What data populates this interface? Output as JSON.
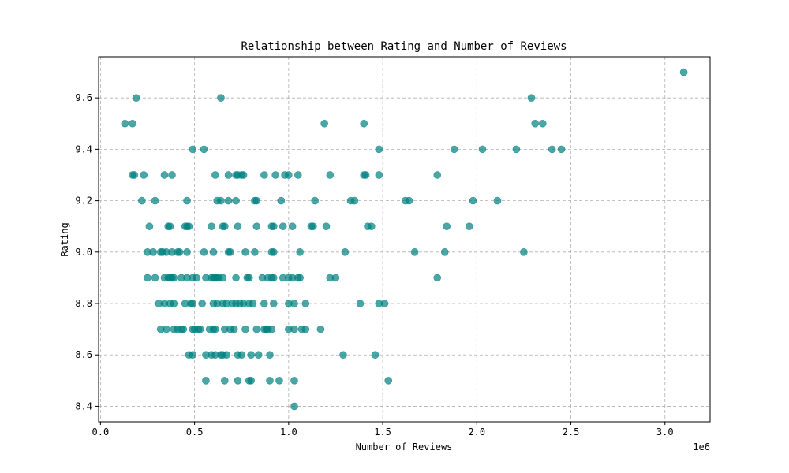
{
  "chart_data": {
    "type": "scatter",
    "title": "Relationship between Rating and Number of Reviews",
    "xlabel": "Number of Reviews",
    "ylabel": "Rating",
    "x_offset_label": "1e6",
    "x_unit_multiplier": 1000000,
    "xlim": [
      -0.01,
      3.24
    ],
    "ylim": [
      8.34,
      9.76
    ],
    "x_ticks": [
      0.0,
      0.5,
      1.0,
      1.5,
      2.0,
      2.5,
      3.0
    ],
    "x_tick_labels": [
      "0.0",
      "0.5",
      "1.0",
      "1.5",
      "2.0",
      "2.5",
      "3.0"
    ],
    "y_ticks": [
      8.4,
      8.6,
      8.8,
      9.0,
      9.2,
      9.4,
      9.6
    ],
    "y_tick_labels": [
      "8.4",
      "8.6",
      "8.8",
      "9.0",
      "9.2",
      "9.4",
      "9.6"
    ],
    "grid": true,
    "marker_color": "#008080",
    "marker_alpha": 0.7,
    "points": [
      [
        0.13,
        9.5
      ],
      [
        0.17,
        9.5
      ],
      [
        0.19,
        9.6
      ],
      [
        0.64,
        9.6
      ],
      [
        1.19,
        9.5
      ],
      [
        1.4,
        9.5
      ],
      [
        2.29,
        9.6
      ],
      [
        2.31,
        9.5
      ],
      [
        2.35,
        9.5
      ],
      [
        3.1,
        9.7
      ],
      [
        0.49,
        9.4
      ],
      [
        0.55,
        9.4
      ],
      [
        1.48,
        9.4
      ],
      [
        1.88,
        9.4
      ],
      [
        2.03,
        9.4
      ],
      [
        2.21,
        9.4
      ],
      [
        2.4,
        9.4
      ],
      [
        2.45,
        9.4
      ],
      [
        0.17,
        9.3
      ],
      [
        0.18,
        9.3
      ],
      [
        0.23,
        9.3
      ],
      [
        0.34,
        9.3
      ],
      [
        0.38,
        9.3
      ],
      [
        0.61,
        9.3
      ],
      [
        0.68,
        9.3
      ],
      [
        0.72,
        9.3
      ],
      [
        0.73,
        9.3
      ],
      [
        0.75,
        9.3
      ],
      [
        0.76,
        9.3
      ],
      [
        0.87,
        9.3
      ],
      [
        0.93,
        9.3
      ],
      [
        0.98,
        9.3
      ],
      [
        1.0,
        9.3
      ],
      [
        1.05,
        9.3
      ],
      [
        1.22,
        9.3
      ],
      [
        1.4,
        9.3
      ],
      [
        1.41,
        9.3
      ],
      [
        1.48,
        9.3
      ],
      [
        1.79,
        9.3
      ],
      [
        0.22,
        9.2
      ],
      [
        0.29,
        9.2
      ],
      [
        0.46,
        9.2
      ],
      [
        0.62,
        9.2
      ],
      [
        0.64,
        9.2
      ],
      [
        0.68,
        9.2
      ],
      [
        0.72,
        9.2
      ],
      [
        0.82,
        9.2
      ],
      [
        0.83,
        9.2
      ],
      [
        0.96,
        9.2
      ],
      [
        1.14,
        9.2
      ],
      [
        1.33,
        9.2
      ],
      [
        1.35,
        9.2
      ],
      [
        1.62,
        9.2
      ],
      [
        1.64,
        9.2
      ],
      [
        1.98,
        9.2
      ],
      [
        2.11,
        9.2
      ],
      [
        0.26,
        9.1
      ],
      [
        0.36,
        9.1
      ],
      [
        0.37,
        9.1
      ],
      [
        0.45,
        9.1
      ],
      [
        0.46,
        9.1
      ],
      [
        0.47,
        9.1
      ],
      [
        0.59,
        9.1
      ],
      [
        0.65,
        9.1
      ],
      [
        0.66,
        9.1
      ],
      [
        0.73,
        9.1
      ],
      [
        0.83,
        9.1
      ],
      [
        0.91,
        9.1
      ],
      [
        0.92,
        9.1
      ],
      [
        0.97,
        9.1
      ],
      [
        1.02,
        9.1
      ],
      [
        1.12,
        9.1
      ],
      [
        1.13,
        9.1
      ],
      [
        1.2,
        9.1
      ],
      [
        1.42,
        9.1
      ],
      [
        1.44,
        9.1
      ],
      [
        1.84,
        9.1
      ],
      [
        1.96,
        9.1
      ],
      [
        0.25,
        9.0
      ],
      [
        0.28,
        9.0
      ],
      [
        0.32,
        9.0
      ],
      [
        0.33,
        9.0
      ],
      [
        0.35,
        9.0
      ],
      [
        0.38,
        9.0
      ],
      [
        0.41,
        9.0
      ],
      [
        0.42,
        9.0
      ],
      [
        0.46,
        9.0
      ],
      [
        0.55,
        9.0
      ],
      [
        0.6,
        9.0
      ],
      [
        0.68,
        9.0
      ],
      [
        0.69,
        9.0
      ],
      [
        0.77,
        9.0
      ],
      [
        0.82,
        9.0
      ],
      [
        0.91,
        9.0
      ],
      [
        0.92,
        9.0
      ],
      [
        1.06,
        9.0
      ],
      [
        1.3,
        9.0
      ],
      [
        1.67,
        9.0
      ],
      [
        1.83,
        9.0
      ],
      [
        2.25,
        9.0
      ],
      [
        0.25,
        8.9
      ],
      [
        0.29,
        8.9
      ],
      [
        0.34,
        8.9
      ],
      [
        0.36,
        8.9
      ],
      [
        0.37,
        8.9
      ],
      [
        0.38,
        8.9
      ],
      [
        0.39,
        8.9
      ],
      [
        0.43,
        8.9
      ],
      [
        0.46,
        8.9
      ],
      [
        0.49,
        8.9
      ],
      [
        0.51,
        8.9
      ],
      [
        0.56,
        8.9
      ],
      [
        0.59,
        8.9
      ],
      [
        0.6,
        8.9
      ],
      [
        0.61,
        8.9
      ],
      [
        0.62,
        8.9
      ],
      [
        0.63,
        8.9
      ],
      [
        0.65,
        8.9
      ],
      [
        0.72,
        8.9
      ],
      [
        0.78,
        8.9
      ],
      [
        0.79,
        8.9
      ],
      [
        0.86,
        8.9
      ],
      [
        0.89,
        8.9
      ],
      [
        0.91,
        8.9
      ],
      [
        0.92,
        8.9
      ],
      [
        0.97,
        8.9
      ],
      [
        1.0,
        8.9
      ],
      [
        1.02,
        8.9
      ],
      [
        1.05,
        8.9
      ],
      [
        1.06,
        8.9
      ],
      [
        1.22,
        8.9
      ],
      [
        1.25,
        8.9
      ],
      [
        1.79,
        8.9
      ],
      [
        0.31,
        8.8
      ],
      [
        0.34,
        8.8
      ],
      [
        0.37,
        8.8
      ],
      [
        0.39,
        8.8
      ],
      [
        0.45,
        8.8
      ],
      [
        0.48,
        8.8
      ],
      [
        0.49,
        8.8
      ],
      [
        0.54,
        8.8
      ],
      [
        0.6,
        8.8
      ],
      [
        0.62,
        8.8
      ],
      [
        0.65,
        8.8
      ],
      [
        0.67,
        8.8
      ],
      [
        0.7,
        8.8
      ],
      [
        0.72,
        8.8
      ],
      [
        0.74,
        8.8
      ],
      [
        0.76,
        8.8
      ],
      [
        0.79,
        8.8
      ],
      [
        0.81,
        8.8
      ],
      [
        0.87,
        8.8
      ],
      [
        0.92,
        8.8
      ],
      [
        1.0,
        8.8
      ],
      [
        1.03,
        8.8
      ],
      [
        1.09,
        8.8
      ],
      [
        1.38,
        8.8
      ],
      [
        1.48,
        8.8
      ],
      [
        1.51,
        8.8
      ],
      [
        0.32,
        8.7
      ],
      [
        0.35,
        8.7
      ],
      [
        0.39,
        8.7
      ],
      [
        0.41,
        8.7
      ],
      [
        0.43,
        8.7
      ],
      [
        0.44,
        8.7
      ],
      [
        0.49,
        8.7
      ],
      [
        0.5,
        8.7
      ],
      [
        0.52,
        8.7
      ],
      [
        0.53,
        8.7
      ],
      [
        0.58,
        8.7
      ],
      [
        0.6,
        8.7
      ],
      [
        0.61,
        8.7
      ],
      [
        0.66,
        8.7
      ],
      [
        0.69,
        8.7
      ],
      [
        0.71,
        8.7
      ],
      [
        0.77,
        8.7
      ],
      [
        0.83,
        8.7
      ],
      [
        0.87,
        8.7
      ],
      [
        0.88,
        8.7
      ],
      [
        0.89,
        8.7
      ],
      [
        0.91,
        8.7
      ],
      [
        1.0,
        8.7
      ],
      [
        1.03,
        8.7
      ],
      [
        1.07,
        8.7
      ],
      [
        1.09,
        8.7
      ],
      [
        1.17,
        8.7
      ],
      [
        0.47,
        8.6
      ],
      [
        0.49,
        8.6
      ],
      [
        0.56,
        8.6
      ],
      [
        0.59,
        8.6
      ],
      [
        0.61,
        8.6
      ],
      [
        0.64,
        8.6
      ],
      [
        0.65,
        8.6
      ],
      [
        0.67,
        8.6
      ],
      [
        0.73,
        8.6
      ],
      [
        0.75,
        8.6
      ],
      [
        0.8,
        8.6
      ],
      [
        0.84,
        8.6
      ],
      [
        0.9,
        8.6
      ],
      [
        1.29,
        8.6
      ],
      [
        1.46,
        8.6
      ],
      [
        0.56,
        8.5
      ],
      [
        0.66,
        8.5
      ],
      [
        0.73,
        8.5
      ],
      [
        0.79,
        8.5
      ],
      [
        0.8,
        8.5
      ],
      [
        0.9,
        8.5
      ],
      [
        0.95,
        8.5
      ],
      [
        1.03,
        8.5
      ],
      [
        1.53,
        8.5
      ],
      [
        1.03,
        8.4
      ]
    ]
  }
}
